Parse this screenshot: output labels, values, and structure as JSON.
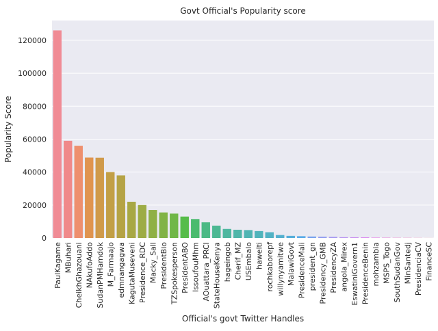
{
  "chart_data": {
    "type": "bar",
    "title": "Govt Official's Popularity score",
    "xlabel": "Official's govt Twitter Handles",
    "ylabel": "Popularity Score",
    "ylim": [
      0,
      132000
    ],
    "yticks": [
      0,
      20000,
      40000,
      60000,
      80000,
      100000,
      120000
    ],
    "grid": true,
    "background": "#EAEAF2",
    "categories": [
      "PaulKagame",
      "MBuhari",
      "CheikhGhazouani",
      "NAkufoAddo",
      "SudanPMHamdok",
      "M_Farmaajo",
      "edmnangagwa",
      "KagutaMuseveni",
      "Presidence_RDC",
      "Macky_Sall",
      "PresidentBio",
      "TZSpokesperson",
      "PresidentABO",
      "IssoufouMhm",
      "AOuattara_PRCI",
      "StateHouseKenya",
      "hageingob",
      "Cherif_MZ",
      "USEmbalo",
      "hawelti",
      "rochkaborepf",
      "willynyamitwe",
      "MalawiGovt",
      "PresidenceMali",
      "president_gn",
      "Presidency_GMB",
      "PresidencyZA",
      "angola_Mirex",
      "EswatiniGovern1",
      "PresidenceBenin",
      "mohzambia",
      "MSPS_Togo",
      "SouthSudanGov",
      "MinSantedj",
      "PresidenciaCV",
      "FinanceSC"
    ],
    "values": [
      126000,
      59000,
      56000,
      48800,
      48700,
      40000,
      38000,
      22000,
      20000,
      17000,
      15500,
      14800,
      13000,
      11500,
      9500,
      7500,
      5500,
      5000,
      4800,
      4200,
      3500,
      1800,
      1300,
      1100,
      900,
      800,
      700,
      500,
      450,
      400,
      250,
      200,
      150,
      120,
      80,
      40
    ],
    "colors": [
      "#F08B95",
      "#F0898A",
      "#EE8F6E",
      "#E0944F",
      "#D09A4A",
      "#C29F46",
      "#B5A345",
      "#A8A845",
      "#9DAC45",
      "#8FB045",
      "#81B346",
      "#70B747",
      "#56BC4A",
      "#4ABB6E",
      "#4BB985",
      "#4DB893",
      "#4EB79F",
      "#4FB6A9",
      "#50B5B3",
      "#50B4BB",
      "#52B2C4",
      "#54B0CF",
      "#56AEDA",
      "#5BABE8",
      "#7AA4EE",
      "#95A0F0",
      "#A89CF1",
      "#BA96F1",
      "#CB8FF0",
      "#DB88F0",
      "#E985EA",
      "#EE87DE",
      "#F088D2",
      "#F089C5",
      "#F08AB8",
      "#F08BA9"
    ]
  }
}
